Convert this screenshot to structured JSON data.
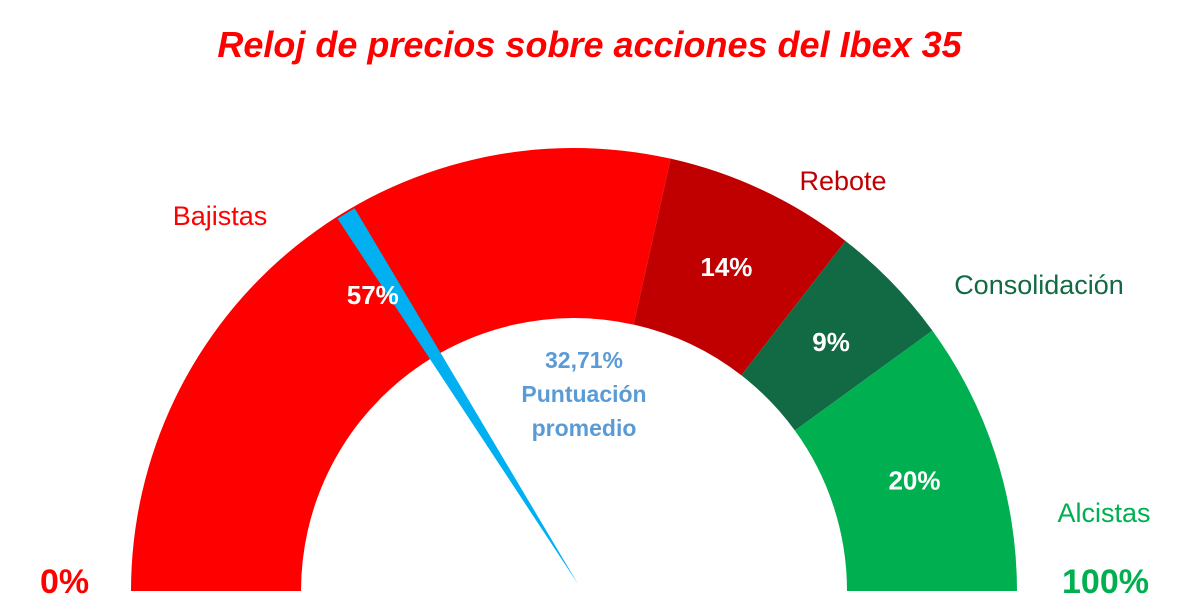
{
  "chart_data": {
    "type": "gauge",
    "title": "Reloj de precios sobre acciones del Ibex 35",
    "range": [
      0,
      100
    ],
    "min_label": "0%",
    "max_label": "100%",
    "segments": [
      {
        "name": "Bajistas",
        "value": 57,
        "value_label": "57%",
        "color": "#ff0000",
        "name_color": "#ff0000"
      },
      {
        "name": "Rebote",
        "value": 14,
        "value_label": "14%",
        "color": "#c00000",
        "name_color": "#c00000"
      },
      {
        "name": "Consolidación",
        "value": 9,
        "value_label": "9%",
        "color": "#126a45",
        "name_color": "#126a45"
      },
      {
        "name": "Alcistas",
        "value": 20,
        "value_label": "20%",
        "color": "#00b050",
        "name_color": "#00b050"
      }
    ],
    "needle": {
      "value": 32.71,
      "value_label": "32,71%",
      "caption_line1": "Puntuación",
      "caption_line2": "promedio",
      "color": "#00b0f0",
      "caption_color": "#5b9bd5"
    }
  },
  "colors": {
    "title": "#ff0000",
    "min_label": "#ff0000",
    "max_label": "#00b050"
  }
}
